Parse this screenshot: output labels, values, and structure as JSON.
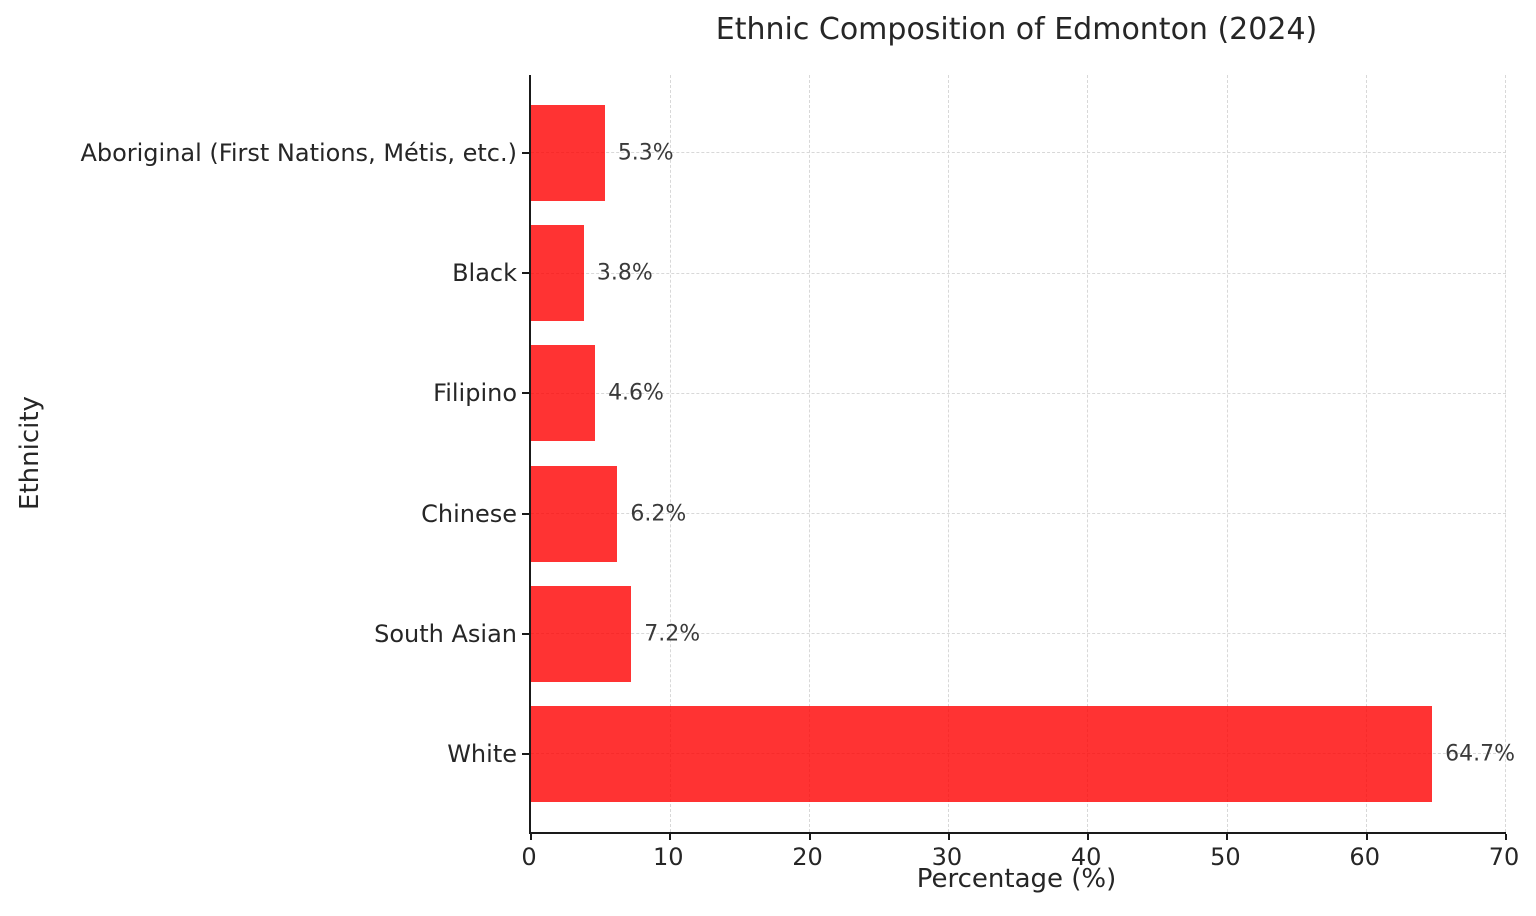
{
  "chart_data": {
    "type": "bar",
    "orientation": "horizontal",
    "title": "Ethnic Composition of Edmonton (2024)",
    "xlabel": "Percentage (%)",
    "ylabel": "Ethnicity",
    "categories": [
      "Aboriginal (First Nations, Métis, etc.)",
      "Black",
      "Filipino",
      "Chinese",
      "South Asian",
      "White"
    ],
    "values": [
      5.3,
      3.8,
      4.6,
      6.2,
      7.2,
      64.7
    ],
    "value_labels": [
      "5.3%",
      "3.8%",
      "4.6%",
      "6.2%",
      "7.2%",
      "64.7%"
    ],
    "xlim": [
      0,
      70
    ],
    "xticks": [
      0,
      10,
      20,
      30,
      40,
      50,
      60,
      70
    ],
    "ylim": [
      -0.65,
      5.65
    ],
    "bar_height": 0.8,
    "grid": true,
    "grid_style": "dashed",
    "legend": "none",
    "bar_color": "#ff0000",
    "bar_opacity": 0.8,
    "grid_color": "#d8d8d8",
    "axis_color": "#1a1a1a",
    "text_color": "#262626"
  }
}
